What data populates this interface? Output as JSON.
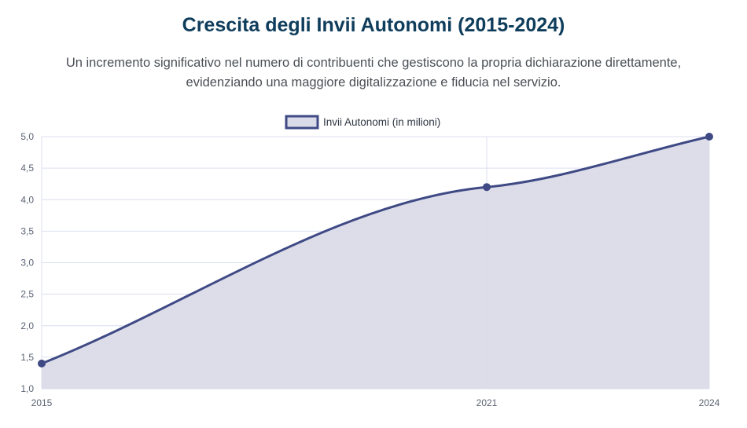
{
  "header": {
    "title": "Crescita degli Invii Autonomi (2015-2024)",
    "subtitle_line1": "Un incremento significativo nel numero di contribuenti che gestiscono la propria dichiarazione direttamente,",
    "subtitle_line2": "evidenziando una maggiore digitalizzazione e fiducia nel servizio."
  },
  "colors": {
    "line": "#3f4a85",
    "fill": "#dadbe8",
    "grid": "#dcdff0",
    "title": "#0f3d5c"
  },
  "chart_data": {
    "type": "area",
    "x": [
      "2015",
      "2021",
      "2024"
    ],
    "x_numeric": [
      2015,
      2021,
      2024
    ],
    "series": [
      {
        "name": "Invii Autonomi (in milioni)",
        "values": [
          1.4,
          4.2,
          5.0
        ]
      }
    ],
    "yticks": [
      "1,0",
      "1,5",
      "2,0",
      "2,5",
      "3,0",
      "3,5",
      "4,0",
      "4,5",
      "5,0"
    ],
    "ylim": [
      1.0,
      5.0
    ],
    "xlim": [
      2015,
      2024
    ],
    "grid": true,
    "legend_position": "top-center",
    "smooth": true
  }
}
